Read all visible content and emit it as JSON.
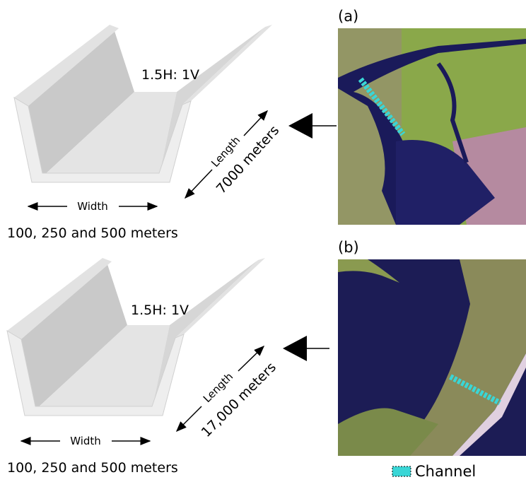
{
  "panels": [
    {
      "label": "(a)",
      "slope": "1.5H: 1V",
      "length_label": "Length",
      "length": "7000 meters",
      "width_label": "Width",
      "widths": "100, 250 and 500 meters"
    },
    {
      "label": "(b)",
      "slope": "1.5H: 1V",
      "length_label": "Length",
      "length": "17,000 meters",
      "width_label": "Width",
      "widths": "100, 250 and 500 meters"
    }
  ],
  "legend": {
    "label": "Channel"
  }
}
